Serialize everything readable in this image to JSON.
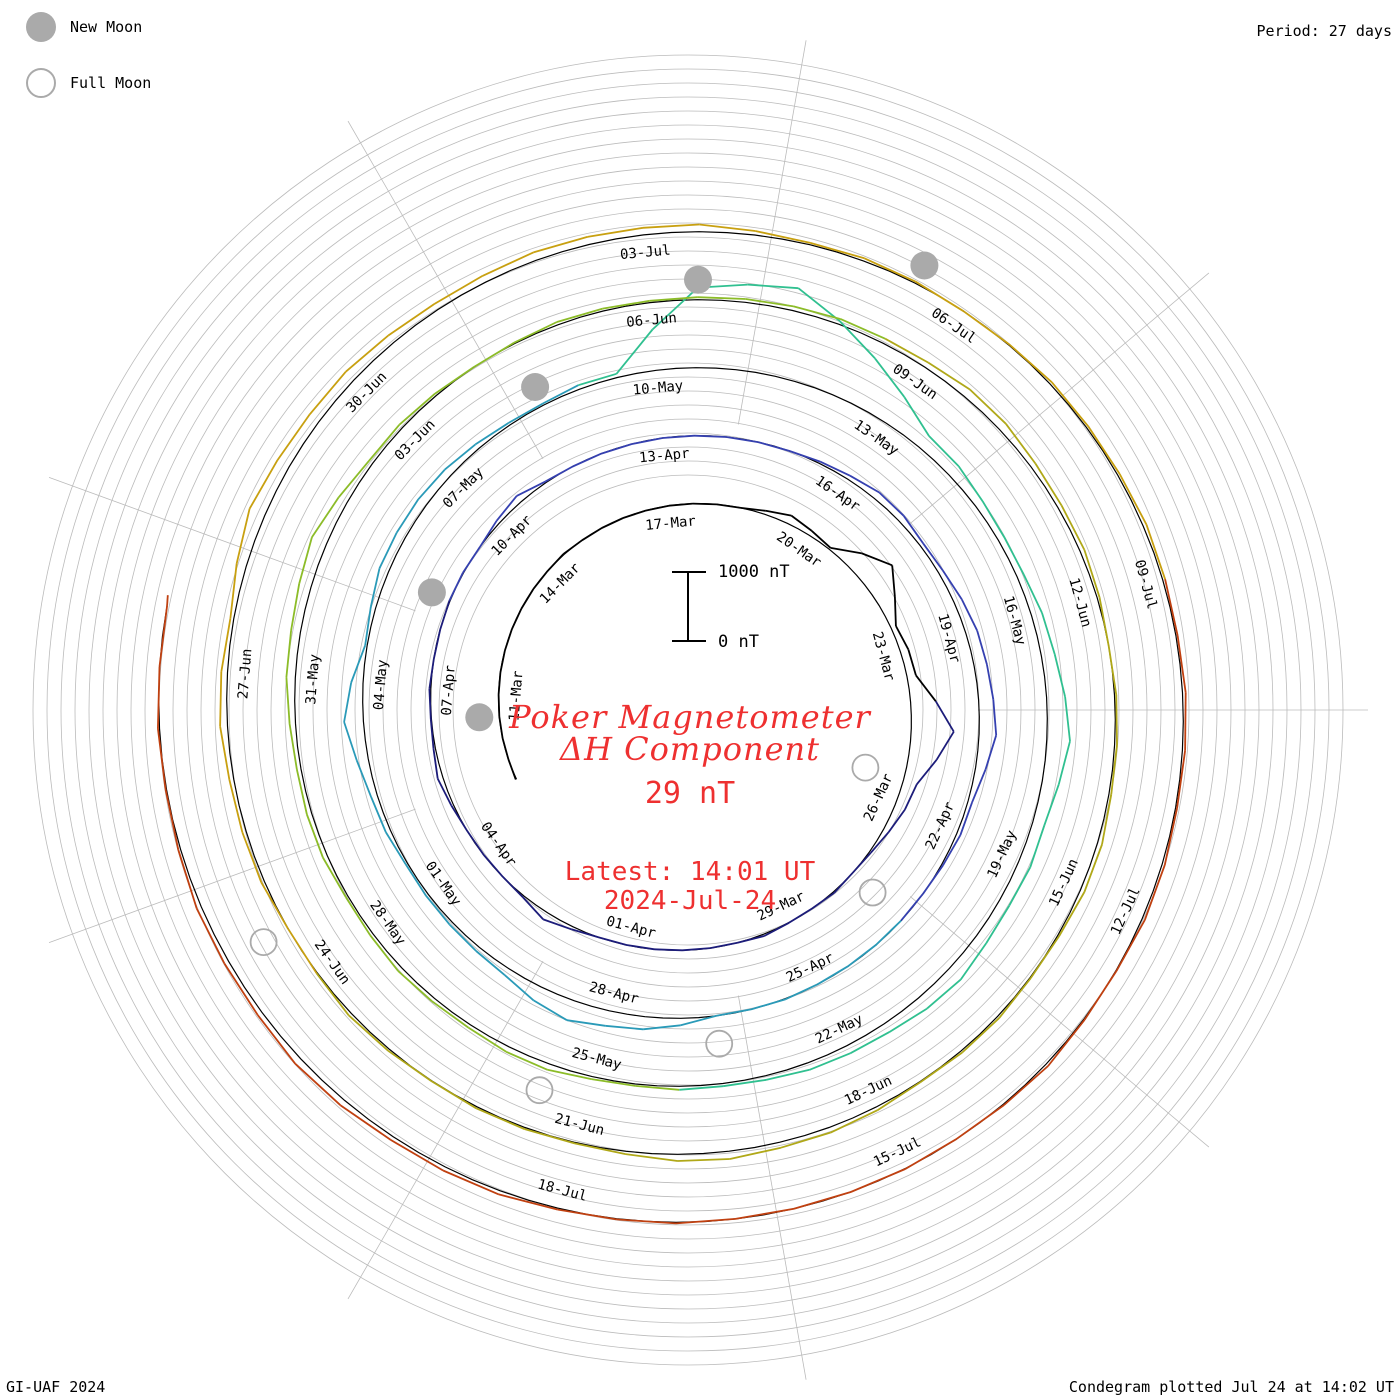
{
  "header": {
    "period": "Period: 27 days"
  },
  "legend": {
    "new_moon": "New Moon",
    "full_moon": "Full Moon"
  },
  "center": {
    "title_line1": "Poker Magnetometer",
    "title_line2": "ΔH Component",
    "current_value": "29 nT",
    "latest_time": "Latest: 14:01 UT",
    "latest_date": "2024-Jul-24"
  },
  "scale": {
    "top_label": "1000 nT",
    "bottom_label": "0 nT"
  },
  "footer": {
    "credit": "GI-UAF 2024",
    "plotted": "Condegram plotted Jul 24 at 14:02 UT"
  },
  "colors": {
    "title_red": "#ee3030",
    "grid": "#bbbbbb",
    "moon": "#aaaaaa"
  },
  "chart_data": {
    "type": "line",
    "title": "Poker Magnetometer ΔH Component",
    "period_days": 27,
    "start_date": "2024-03-09",
    "end_date": "2024-07-24",
    "date_labels": [
      "11-Mar",
      "14-Mar",
      "17-Mar",
      "20-Mar",
      "23-Mar",
      "26-Mar",
      "29-Mar",
      "01-Apr",
      "04-Apr",
      "07-Apr",
      "10-Apr",
      "13-Apr",
      "16-Apr",
      "19-Apr",
      "22-Apr",
      "25-Apr",
      "28-Apr",
      "01-May",
      "04-May",
      "07-May",
      "10-May",
      "13-May",
      "16-May",
      "19-May",
      "22-May",
      "25-May",
      "28-May",
      "31-May",
      "03-Jun",
      "06-Jun",
      "09-Jun",
      "12-Jun",
      "15-Jun",
      "18-Jun",
      "21-Jun",
      "24-Jun",
      "27-Jun",
      "30-Jun",
      "03-Jul",
      "06-Jul",
      "09-Jul",
      "12-Jul",
      "15-Jul",
      "18-Jul"
    ],
    "new_moons": [
      "2024-03-10",
      "2024-04-08",
      "2024-05-08",
      "2024-06-06",
      "2024-07-05"
    ],
    "full_moons": [
      "2024-03-25",
      "2024-04-23",
      "2024-05-23",
      "2024-06-21",
      "2024-07-21"
    ],
    "y_unit": "nT",
    "scale_bar": [
      0,
      1000
    ],
    "series_colors": [
      "#000000",
      "#1c1c7a",
      "#3540b0",
      "#2a9ab8",
      "#30c090",
      "#8cbc28",
      "#b0a818",
      "#c8a010",
      "#c04010"
    ],
    "daily_dH_nT": [
      {
        "date": "03-09",
        "v": 120
      },
      {
        "date": "03-10",
        "v": 160
      },
      {
        "date": "03-11",
        "v": 110
      },
      {
        "date": "03-12",
        "v": 140
      },
      {
        "date": "03-13",
        "v": 130
      },
      {
        "date": "03-14",
        "v": 150
      },
      {
        "date": "03-15",
        "v": 110
      },
      {
        "date": "03-16",
        "v": 90
      },
      {
        "date": "03-17",
        "v": 100
      },
      {
        "date": "03-18",
        "v": 140
      },
      {
        "date": "03-19",
        "v": 260
      },
      {
        "date": "03-20",
        "v": 200
      },
      {
        "date": "03-21",
        "v": 650
      },
      {
        "date": "03-22",
        "v": 240
      },
      {
        "date": "03-23",
        "v": 300
      },
      {
        "date": "03-24",
        "v": 750
      },
      {
        "date": "03-25",
        "v": 350
      },
      {
        "date": "03-26",
        "v": 200
      },
      {
        "date": "03-27",
        "v": 120
      },
      {
        "date": "03-28",
        "v": 140
      },
      {
        "date": "03-29",
        "v": 160
      },
      {
        "date": "03-30",
        "v": 130
      },
      {
        "date": "03-31",
        "v": 110
      },
      {
        "date": "04-01",
        "v": 120
      },
      {
        "date": "04-02",
        "v": 300
      },
      {
        "date": "04-03",
        "v": 120
      },
      {
        "date": "04-04",
        "v": 140
      },
      {
        "date": "04-05",
        "v": 200
      },
      {
        "date": "04-06",
        "v": 140
      },
      {
        "date": "04-07",
        "v": 120
      },
      {
        "date": "04-08",
        "v": 130
      },
      {
        "date": "04-09",
        "v": 150
      },
      {
        "date": "04-10",
        "v": 250
      },
      {
        "date": "04-11",
        "v": 130
      },
      {
        "date": "04-12",
        "v": 110
      },
      {
        "date": "04-13",
        "v": 120
      },
      {
        "date": "04-14",
        "v": 130
      },
      {
        "date": "04-15",
        "v": 150
      },
      {
        "date": "04-16",
        "v": 250
      },
      {
        "date": "04-17",
        "v": 180
      },
      {
        "date": "04-18",
        "v": 250
      },
      {
        "date": "04-19",
        "v": 350
      },
      {
        "date": "04-20",
        "v": 400
      },
      {
        "date": "04-21",
        "v": 250
      },
      {
        "date": "04-22",
        "v": 200
      },
      {
        "date": "04-23",
        "v": 150
      },
      {
        "date": "04-24",
        "v": 160
      },
      {
        "date": "04-25",
        "v": 140
      },
      {
        "date": "04-26",
        "v": 130
      },
      {
        "date": "04-27",
        "v": 300
      },
      {
        "date": "04-28",
        "v": 420
      },
      {
        "date": "04-29",
        "v": 250
      },
      {
        "date": "04-30",
        "v": 180
      },
      {
        "date": "05-01",
        "v": 200
      },
      {
        "date": "05-02",
        "v": 250
      },
      {
        "date": "05-03",
        "v": 450
      },
      {
        "date": "05-04",
        "v": 200
      },
      {
        "date": "05-05",
        "v": 280
      },
      {
        "date": "05-06",
        "v": 300
      },
      {
        "date": "05-07",
        "v": 200
      },
      {
        "date": "05-08",
        "v": 160
      },
      {
        "date": "05-09",
        "v": 200
      },
      {
        "date": "05-10",
        "v": 1300
      },
      {
        "date": "05-11",
        "v": 1500
      },
      {
        "date": "05-12",
        "v": 900
      },
      {
        "date": "05-13",
        "v": 400
      },
      {
        "date": "05-14",
        "v": 300
      },
      {
        "date": "05-15",
        "v": 250
      },
      {
        "date": "05-16",
        "v": 350
      },
      {
        "date": "05-17",
        "v": 450
      },
      {
        "date": "05-18",
        "v": 300
      },
      {
        "date": "05-19",
        "v": 280
      },
      {
        "date": "05-20",
        "v": 350
      },
      {
        "date": "05-21",
        "v": 300
      },
      {
        "date": "05-22",
        "v": 250
      },
      {
        "date": "05-23",
        "v": 220
      },
      {
        "date": "05-24",
        "v": 200
      },
      {
        "date": "05-25",
        "v": 250
      },
      {
        "date": "05-26",
        "v": 220
      },
      {
        "date": "05-27",
        "v": 200
      },
      {
        "date": "05-28",
        "v": 180
      },
      {
        "date": "05-29",
        "v": 200
      },
      {
        "date": "05-30",
        "v": 220
      },
      {
        "date": "05-31",
        "v": 300
      },
      {
        "date": "06-01",
        "v": 380
      },
      {
        "date": "06-02",
        "v": 250
      },
      {
        "date": "06-03",
        "v": 200
      },
      {
        "date": "06-04",
        "v": 180
      },
      {
        "date": "06-05",
        "v": 200
      },
      {
        "date": "06-06",
        "v": 160
      },
      {
        "date": "06-07",
        "v": 200
      },
      {
        "date": "06-08",
        "v": 180
      },
      {
        "date": "06-09",
        "v": 250
      },
      {
        "date": "06-10",
        "v": 220
      },
      {
        "date": "06-11",
        "v": 200
      },
      {
        "date": "06-12",
        "v": 180
      },
      {
        "date": "06-13",
        "v": 200
      },
      {
        "date": "06-14",
        "v": 250
      },
      {
        "date": "06-15",
        "v": 200
      },
      {
        "date": "06-16",
        "v": 180
      },
      {
        "date": "06-17",
        "v": 170
      },
      {
        "date": "06-18",
        "v": 200
      },
      {
        "date": "06-19",
        "v": 250
      },
      {
        "date": "06-20",
        "v": 180
      },
      {
        "date": "06-21",
        "v": 160
      },
      {
        "date": "06-22",
        "v": 180
      },
      {
        "date": "06-23",
        "v": 200
      },
      {
        "date": "06-24",
        "v": 180
      },
      {
        "date": "06-25",
        "v": 220
      },
      {
        "date": "06-26",
        "v": 250
      },
      {
        "date": "06-27",
        "v": 200
      },
      {
        "date": "06-28",
        "v": 350
      },
      {
        "date": "06-29",
        "v": 300
      },
      {
        "date": "06-30",
        "v": 250
      },
      {
        "date": "07-01",
        "v": 230
      },
      {
        "date": "07-02",
        "v": 280
      },
      {
        "date": "07-03",
        "v": 260
      },
      {
        "date": "07-04",
        "v": 220
      },
      {
        "date": "07-05",
        "v": 200
      },
      {
        "date": "07-06",
        "v": 180
      },
      {
        "date": "07-07",
        "v": 200
      },
      {
        "date": "07-08",
        "v": 180
      },
      {
        "date": "07-09",
        "v": 170
      },
      {
        "date": "07-10",
        "v": 160
      },
      {
        "date": "07-11",
        "v": 170
      },
      {
        "date": "07-12",
        "v": 160
      },
      {
        "date": "07-13",
        "v": 180
      },
      {
        "date": "07-14",
        "v": 170
      },
      {
        "date": "07-15",
        "v": 160
      },
      {
        "date": "07-16",
        "v": 150
      },
      {
        "date": "07-17",
        "v": 170
      },
      {
        "date": "07-18",
        "v": 180
      },
      {
        "date": "07-19",
        "v": 200
      },
      {
        "date": "07-20",
        "v": 220
      },
      {
        "date": "07-21",
        "v": 200
      },
      {
        "date": "07-22",
        "v": 180
      },
      {
        "date": "07-23",
        "v": 170
      },
      {
        "date": "07-24",
        "v": 160
      }
    ]
  }
}
